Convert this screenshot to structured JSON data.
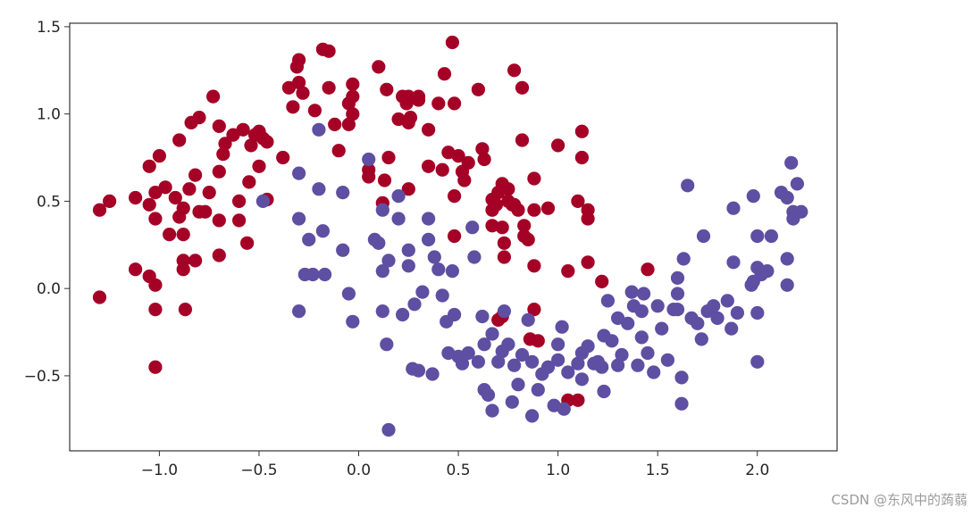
{
  "watermark": "CSDN @东风中的蒟蒻",
  "chart_data": {
    "type": "scatter",
    "title": "",
    "xlabel": "",
    "ylabel": "",
    "xlim": [
      -1.45,
      2.4
    ],
    "ylim": [
      -0.93,
      1.52
    ],
    "xticks": [
      -1.0,
      -0.5,
      0.0,
      0.5,
      1.0,
      1.5,
      2.0
    ],
    "xtick_labels": [
      "−1.0",
      "−0.5",
      "0.0",
      "0.5",
      "1.0",
      "1.5",
      "2.0"
    ],
    "yticks": [
      -0.5,
      0.0,
      0.5,
      1.0,
      1.5
    ],
    "ytick_labels": [
      "−0.5",
      "0.0",
      "0.5",
      "1.0",
      "1.5"
    ],
    "grid": false,
    "colors": {
      "class0": "#a50026",
      "class1": "#5e4fa2",
      "axes": "#333333"
    },
    "series": [
      {
        "name": "",
        "color": "#a50026",
        "points": [
          [
            -1.3,
            0.45
          ],
          [
            -1.25,
            0.5
          ],
          [
            -1.3,
            -0.05
          ],
          [
            -1.12,
            0.52
          ],
          [
            -1.12,
            0.11
          ],
          [
            -1.05,
            0.7
          ],
          [
            -1.05,
            0.48
          ],
          [
            -1.0,
            0.76
          ],
          [
            -1.02,
            0.55
          ],
          [
            -1.02,
            0.4
          ],
          [
            -1.05,
            0.07
          ],
          [
            -1.02,
            0.02
          ],
          [
            -1.02,
            -0.12
          ],
          [
            -1.02,
            -0.45
          ],
          [
            -0.97,
            0.58
          ],
          [
            -0.95,
            0.31
          ],
          [
            -0.92,
            0.52
          ],
          [
            -0.9,
            0.41
          ],
          [
            -0.9,
            0.85
          ],
          [
            -0.88,
            0.46
          ],
          [
            -0.88,
            0.31
          ],
          [
            -0.88,
            0.16
          ],
          [
            -0.88,
            0.11
          ],
          [
            -0.87,
            -0.12
          ],
          [
            -0.85,
            0.57
          ],
          [
            -0.84,
            0.95
          ],
          [
            -0.82,
            0.65
          ],
          [
            -0.8,
            0.44
          ],
          [
            -0.82,
            0.16
          ],
          [
            -0.8,
            0.98
          ],
          [
            -0.77,
            0.44
          ],
          [
            -0.75,
            0.55
          ],
          [
            -0.73,
            1.1
          ],
          [
            -0.7,
            0.93
          ],
          [
            -0.7,
            0.67
          ],
          [
            -0.7,
            0.39
          ],
          [
            -0.7,
            0.19
          ],
          [
            -0.68,
            0.77
          ],
          [
            -0.67,
            0.83
          ],
          [
            -0.63,
            0.88
          ],
          [
            -0.6,
            0.5
          ],
          [
            -0.6,
            0.39
          ],
          [
            -0.58,
            0.91
          ],
          [
            -0.56,
            0.26
          ],
          [
            -0.55,
            0.61
          ],
          [
            -0.54,
            0.82
          ],
          [
            -0.52,
            0.88
          ],
          [
            -0.5,
            0.7
          ],
          [
            -0.5,
            0.9
          ],
          [
            -0.48,
            0.86
          ],
          [
            -0.46,
            0.84
          ],
          [
            -0.46,
            0.51
          ],
          [
            -0.38,
            0.75
          ],
          [
            -0.35,
            1.15
          ],
          [
            -0.33,
            1.04
          ],
          [
            -0.31,
            1.27
          ],
          [
            -0.3,
            1.18
          ],
          [
            -0.3,
            1.31
          ],
          [
            -0.28,
            1.12
          ],
          [
            -0.22,
            1.02
          ],
          [
            -0.18,
            1.37
          ],
          [
            -0.15,
            1.36
          ],
          [
            -0.15,
            1.15
          ],
          [
            -0.1,
            0.79
          ],
          [
            -0.12,
            0.94
          ],
          [
            -0.05,
            1.06
          ],
          [
            -0.05,
            0.94
          ],
          [
            -0.03,
            1.17
          ],
          [
            -0.03,
            1.1
          ],
          [
            -0.03,
            1.0
          ],
          [
            0.05,
            0.68
          ],
          [
            0.05,
            0.64
          ],
          [
            0.1,
            1.27
          ],
          [
            0.12,
            0.49
          ],
          [
            0.13,
            0.62
          ],
          [
            0.14,
            1.14
          ],
          [
            0.15,
            0.75
          ],
          [
            0.2,
            0.97
          ],
          [
            0.22,
            1.1
          ],
          [
            0.24,
            1.06
          ],
          [
            0.25,
            1.1
          ],
          [
            0.25,
            0.95
          ],
          [
            0.26,
            0.98
          ],
          [
            0.25,
            0.57
          ],
          [
            0.3,
            1.1
          ],
          [
            0.3,
            1.08
          ],
          [
            0.35,
            0.91
          ],
          [
            0.35,
            0.7
          ],
          [
            0.4,
            1.06
          ],
          [
            0.42,
            0.68
          ],
          [
            0.43,
            1.23
          ],
          [
            0.45,
            0.78
          ],
          [
            0.47,
            1.41
          ],
          [
            0.48,
            1.06
          ],
          [
            0.48,
            0.53
          ],
          [
            0.48,
            0.3
          ],
          [
            0.5,
            0.76
          ],
          [
            0.52,
            0.67
          ],
          [
            0.53,
            0.62
          ],
          [
            0.55,
            0.72
          ],
          [
            0.6,
            1.14
          ],
          [
            0.62,
            0.8
          ],
          [
            0.63,
            0.74
          ],
          [
            0.67,
            0.51
          ],
          [
            0.67,
            0.45
          ],
          [
            0.67,
            0.36
          ],
          [
            0.69,
            0.48
          ],
          [
            0.7,
            0.55
          ],
          [
            0.72,
            0.6
          ],
          [
            0.72,
            0.35
          ],
          [
            0.73,
            0.26
          ],
          [
            0.73,
            0.18
          ],
          [
            0.75,
            0.57
          ],
          [
            0.75,
            0.5
          ],
          [
            0.77,
            0.48
          ],
          [
            0.78,
            1.25
          ],
          [
            0.78,
            0.48
          ],
          [
            0.8,
            0.45
          ],
          [
            0.82,
            1.15
          ],
          [
            0.82,
            0.85
          ],
          [
            0.83,
            0.36
          ],
          [
            0.83,
            0.3
          ],
          [
            0.85,
            0.28
          ],
          [
            0.88,
            0.63
          ],
          [
            0.88,
            0.45
          ],
          [
            0.88,
            0.13
          ],
          [
            0.9,
            -0.3
          ],
          [
            0.88,
            -0.12
          ],
          [
            0.86,
            -0.29
          ],
          [
            0.72,
            -0.16
          ],
          [
            0.7,
            -0.18
          ],
          [
            0.95,
            0.46
          ],
          [
            1.0,
            0.82
          ],
          [
            1.05,
            0.1
          ],
          [
            1.1,
            0.5
          ],
          [
            1.12,
            0.9
          ],
          [
            1.12,
            0.75
          ],
          [
            1.15,
            0.4
          ],
          [
            1.15,
            0.45
          ],
          [
            1.15,
            0.15
          ],
          [
            1.22,
            0.04
          ],
          [
            1.45,
            0.11
          ],
          [
            1.1,
            -0.64
          ],
          [
            1.05,
            -0.64
          ]
        ]
      },
      {
        "name": "",
        "color": "#5e4fa2",
        "points": [
          [
            -0.48,
            0.5
          ],
          [
            -0.3,
            0.66
          ],
          [
            -0.3,
            0.4
          ],
          [
            -0.3,
            -0.13
          ],
          [
            -0.27,
            0.08
          ],
          [
            -0.25,
            0.28
          ],
          [
            -0.23,
            0.08
          ],
          [
            -0.2,
            0.91
          ],
          [
            -0.2,
            0.57
          ],
          [
            -0.18,
            0.33
          ],
          [
            -0.17,
            0.08
          ],
          [
            -0.08,
            0.22
          ],
          [
            -0.08,
            0.55
          ],
          [
            -0.05,
            -0.03
          ],
          [
            -0.03,
            -0.19
          ],
          [
            0.05,
            0.74
          ],
          [
            0.08,
            0.28
          ],
          [
            0.1,
            0.26
          ],
          [
            0.12,
            0.1
          ],
          [
            0.12,
            0.45
          ],
          [
            0.12,
            -0.13
          ],
          [
            0.14,
            -0.32
          ],
          [
            0.15,
            0.16
          ],
          [
            0.2,
            0.4
          ],
          [
            0.2,
            0.53
          ],
          [
            0.22,
            -0.15
          ],
          [
            0.25,
            0.22
          ],
          [
            0.25,
            0.13
          ],
          [
            0.27,
            -0.46
          ],
          [
            0.28,
            -0.09
          ],
          [
            0.3,
            -0.47
          ],
          [
            0.32,
            -0.02
          ],
          [
            0.35,
            0.4
          ],
          [
            0.35,
            0.28
          ],
          [
            0.37,
            -0.49
          ],
          [
            0.38,
            0.18
          ],
          [
            0.4,
            0.11
          ],
          [
            0.42,
            -0.04
          ],
          [
            0.44,
            -0.19
          ],
          [
            0.45,
            -0.37
          ],
          [
            0.47,
            0.1
          ],
          [
            0.48,
            -0.15
          ],
          [
            0.5,
            -0.39
          ],
          [
            0.52,
            -0.43
          ],
          [
            0.55,
            -0.37
          ],
          [
            0.57,
            0.35
          ],
          [
            0.58,
            0.18
          ],
          [
            0.6,
            -0.42
          ],
          [
            0.62,
            -0.16
          ],
          [
            0.63,
            -0.32
          ],
          [
            0.63,
            -0.58
          ],
          [
            0.65,
            -0.61
          ],
          [
            0.67,
            -0.7
          ],
          [
            0.67,
            -0.26
          ],
          [
            0.7,
            -0.42
          ],
          [
            0.72,
            -0.36
          ],
          [
            0.73,
            -0.13
          ],
          [
            0.75,
            -0.32
          ],
          [
            0.77,
            -0.65
          ],
          [
            0.78,
            -0.44
          ],
          [
            0.8,
            -0.55
          ],
          [
            0.82,
            -0.38
          ],
          [
            0.85,
            -0.18
          ],
          [
            0.87,
            -0.73
          ],
          [
            0.87,
            -0.42
          ],
          [
            0.9,
            -0.58
          ],
          [
            0.92,
            -0.49
          ],
          [
            0.95,
            -0.45
          ],
          [
            0.98,
            -0.67
          ],
          [
            1.0,
            -0.41
          ],
          [
            1.0,
            -0.32
          ],
          [
            1.02,
            -0.22
          ],
          [
            1.03,
            -0.69
          ],
          [
            1.05,
            -0.48
          ],
          [
            1.1,
            -0.43
          ],
          [
            1.12,
            -0.37
          ],
          [
            1.12,
            -0.52
          ],
          [
            1.15,
            -0.33
          ],
          [
            1.18,
            -0.43
          ],
          [
            1.2,
            -0.42
          ],
          [
            1.22,
            -0.45
          ],
          [
            1.23,
            -0.59
          ],
          [
            1.23,
            -0.27
          ],
          [
            1.25,
            -0.07
          ],
          [
            1.27,
            -0.3
          ],
          [
            1.3,
            -0.17
          ],
          [
            1.3,
            -0.44
          ],
          [
            1.32,
            -0.38
          ],
          [
            1.35,
            -0.2
          ],
          [
            1.37,
            -0.02
          ],
          [
            1.38,
            -0.1
          ],
          [
            1.4,
            -0.44
          ],
          [
            1.42,
            -0.13
          ],
          [
            1.42,
            -0.28
          ],
          [
            1.43,
            -0.03
          ],
          [
            1.45,
            -0.37
          ],
          [
            1.48,
            -0.48
          ],
          [
            1.5,
            -0.1
          ],
          [
            1.52,
            -0.23
          ],
          [
            1.55,
            -0.41
          ],
          [
            1.58,
            -0.12
          ],
          [
            1.6,
            0.06
          ],
          [
            1.6,
            -0.03
          ],
          [
            1.6,
            -0.12
          ],
          [
            1.62,
            -0.66
          ],
          [
            1.62,
            -0.51
          ],
          [
            1.63,
            0.17
          ],
          [
            1.65,
            0.59
          ],
          [
            1.67,
            -0.17
          ],
          [
            1.7,
            -0.2
          ],
          [
            1.72,
            -0.29
          ],
          [
            1.73,
            0.3
          ],
          [
            1.75,
            -0.13
          ],
          [
            1.78,
            -0.1
          ],
          [
            1.8,
            -0.17
          ],
          [
            1.85,
            -0.07
          ],
          [
            1.87,
            -0.23
          ],
          [
            1.88,
            0.46
          ],
          [
            1.88,
            0.15
          ],
          [
            1.9,
            -0.14
          ],
          [
            1.97,
            0.02
          ],
          [
            1.98,
            0.53
          ],
          [
            1.98,
            0.04
          ],
          [
            2.0,
            0.3
          ],
          [
            2.0,
            0.12
          ],
          [
            2.0,
            -0.14
          ],
          [
            2.0,
            -0.42
          ],
          [
            2.02,
            0.08
          ],
          [
            2.05,
            0.1
          ],
          [
            2.07,
            0.3
          ],
          [
            2.12,
            0.55
          ],
          [
            2.15,
            0.02
          ],
          [
            2.15,
            0.17
          ],
          [
            2.15,
            0.52
          ],
          [
            2.17,
            0.72
          ],
          [
            2.18,
            0.4
          ],
          [
            2.18,
            0.44
          ],
          [
            2.2,
            0.6
          ],
          [
            2.22,
            0.44
          ],
          [
            0.15,
            -0.81
          ]
        ]
      }
    ]
  }
}
